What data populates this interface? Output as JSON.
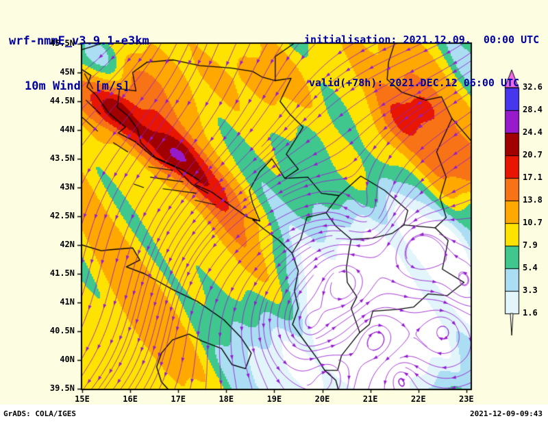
{
  "header": {
    "model": "wrf-nmmE_v3.9.1-e3km",
    "field": "10m Wind  [m/s]",
    "init": "initialisation: 2021.12.09.  00:00 UTC",
    "valid": "valid(+78h): 2021.DEC.12 06:00 UTC"
  },
  "footer": {
    "left": "GrADS: COLA/IGES",
    "right": "2021-12-09-09:43"
  },
  "colors": {
    "background": "#fdfde1",
    "header_text": "#0000a0",
    "tick_text": "#000000",
    "footer_bg": "#ffffff",
    "stream": "#941cd0",
    "map_outline": "#000000"
  },
  "chart_data": {
    "type": "heatmap",
    "title": "10m Wind [m/s]",
    "units": "m/s",
    "overlays": [
      "streamlines",
      "country-borders",
      "coastlines"
    ],
    "x_axis": {
      "range": [
        15,
        23.088
      ],
      "ticks": [
        {
          "v": 15,
          "label": "15E"
        },
        {
          "v": 16,
          "label": "16E"
        },
        {
          "v": 17,
          "label": "17E"
        },
        {
          "v": 18,
          "label": "18E"
        },
        {
          "v": 19,
          "label": "19E"
        },
        {
          "v": 20,
          "label": "20E"
        },
        {
          "v": 21,
          "label": "21E"
        },
        {
          "v": 22,
          "label": "22E"
        },
        {
          "v": 23,
          "label": "23E"
        }
      ]
    },
    "y_axis": {
      "range": [
        39.5,
        45.5
      ],
      "ticks": [
        {
          "v": 45.5,
          "label": "45.5N"
        },
        {
          "v": 45,
          "label": "45N"
        },
        {
          "v": 44.5,
          "label": "44.5N"
        },
        {
          "v": 44,
          "label": "44N"
        },
        {
          "v": 43.5,
          "label": "43.5N"
        },
        {
          "v": 43,
          "label": "43N"
        },
        {
          "v": 42.5,
          "label": "42.5N"
        },
        {
          "v": 42,
          "label": "42N"
        },
        {
          "v": 41.5,
          "label": "41.5N"
        },
        {
          "v": 41,
          "label": "41N"
        },
        {
          "v": 40.5,
          "label": "40.5N"
        },
        {
          "v": 40,
          "label": "40N"
        },
        {
          "v": 39.5,
          "label": "39.5N"
        }
      ]
    },
    "colorbar": {
      "levels": [
        1.6,
        3.3,
        5.4,
        7.9,
        10.7,
        13.8,
        17.1,
        20.7,
        24.4,
        28.4,
        32.6
      ],
      "bin_colors": [
        "#ffffff",
        "#e2f5fb",
        "#abdef2",
        "#3fc78e",
        "#ffe300",
        "#ffa800",
        "#f87316",
        "#e81600",
        "#a00000",
        "#971bca",
        "#4636ee",
        "#ef68e6"
      ]
    },
    "wind_field": {
      "base": 8.8,
      "bumps": [
        {
          "x": 16.35,
          "y": 43.9,
          "sx": 1.5,
          "sy": 0.24,
          "a": 11,
          "rot": -0.57
        },
        {
          "x": 15.65,
          "y": 44.35,
          "sx": 0.25,
          "sy": 0.18,
          "a": 3.5
        },
        {
          "x": 16.9,
          "y": 43.55,
          "sx": 0.3,
          "sy": 0.2,
          "a": 3
        },
        {
          "x": 15.8,
          "y": 44.9,
          "sx": 1.3,
          "sy": 0.9,
          "a": 3.5
        },
        {
          "x": 18.3,
          "y": 45.2,
          "sx": 1.8,
          "sy": 0.7,
          "a": 2.5
        },
        {
          "x": 21.8,
          "y": 44.1,
          "sx": 1.1,
          "sy": 0.8,
          "a": 5.5,
          "rot": 0.3
        },
        {
          "x": 21.9,
          "y": 44.3,
          "sx": 0.4,
          "sy": 0.3,
          "a": 4
        },
        {
          "x": 22.95,
          "y": 43.25,
          "sx": 0.5,
          "sy": 0.45,
          "a": 6
        },
        {
          "x": 20.7,
          "y": 41.2,
          "sx": 1.5,
          "sy": 1.2,
          "a": -7.5
        },
        {
          "x": 19.9,
          "y": 39.9,
          "sx": 1.3,
          "sy": 0.8,
          "a": -6.5
        },
        {
          "x": 22.4,
          "y": 40.3,
          "sx": 1.0,
          "sy": 0.8,
          "a": -5
        },
        {
          "x": 15.45,
          "y": 45.3,
          "sx": 0.55,
          "sy": 0.35,
          "a": -8
        },
        {
          "x": 18.3,
          "y": 45.55,
          "sx": 0.9,
          "sy": 0.3,
          "a": -3
        },
        {
          "x": 16.2,
          "y": 40.4,
          "sx": 1.3,
          "sy": 1.0,
          "a": 2.2
        },
        {
          "x": 18.3,
          "y": 41.9,
          "sx": 1.5,
          "sy": 0.4,
          "a": 4,
          "rot": -0.94
        },
        {
          "x": 23.1,
          "y": 42.3,
          "sx": 0.5,
          "sy": 0.6,
          "a": -4
        },
        {
          "x": 23.2,
          "y": 45.2,
          "sx": 0.5,
          "sy": 0.5,
          "a": -4
        },
        {
          "x": 20.0,
          "y": 43.9,
          "sx": 0.6,
          "sy": 0.5,
          "a": -3.5
        },
        {
          "x": 21.5,
          "y": 42.4,
          "sx": 0.8,
          "sy": 0.7,
          "a": -4
        }
      ],
      "waves": [
        {
          "kx": 2.3,
          "ky": 1.7,
          "p": 1.1,
          "a": 1.6
        },
        {
          "kx": 4.1,
          "ky": 3.3,
          "p": 0.3,
          "a": 1.0
        },
        {
          "kx": 7.7,
          "ky": 5.9,
          "p": 2.0,
          "a": 0.7
        }
      ]
    },
    "flow": {
      "base": {
        "u": -0.85,
        "v": -0.95
      },
      "damp": {
        "x": 21.0,
        "y": 41.2,
        "sx": 2.2,
        "sy": 1.6,
        "a": 0.78
      },
      "vortices": [
        {
          "x": 20.45,
          "y": 41.35,
          "g": 1.5,
          "c": 0.32
        },
        {
          "x": 21.15,
          "y": 40.35,
          "g": -1.3,
          "c": 0.3
        },
        {
          "x": 19.7,
          "y": 40.6,
          "g": 1.1,
          "c": 0.28
        },
        {
          "x": 21.95,
          "y": 41.9,
          "g": 1.3,
          "c": 0.33
        },
        {
          "x": 22.55,
          "y": 40.55,
          "g": -1.1,
          "c": 0.3
        },
        {
          "x": 20.95,
          "y": 42.55,
          "g": -0.9,
          "c": 0.3
        },
        {
          "x": 21.55,
          "y": 39.75,
          "g": 0.9,
          "c": 0.28
        },
        {
          "x": 22.95,
          "y": 41.25,
          "g": 0.8,
          "c": 0.28
        },
        {
          "x": 20.1,
          "y": 39.75,
          "g": -0.7,
          "c": 0.25
        }
      ],
      "waves": [
        {
          "kxu": 0.8,
          "kyu": 1.1,
          "au": 0.35,
          "kxv": 0.9,
          "kyv": -0.7,
          "av": 0.35
        }
      ]
    },
    "geo": {
      "coast": [
        [
          [
            15.0,
            45.05
          ],
          [
            15.18,
            44.95
          ],
          [
            15.1,
            44.75
          ],
          [
            15.3,
            44.6
          ],
          [
            15.55,
            44.3
          ],
          [
            15.9,
            44.05
          ],
          [
            15.75,
            43.95
          ],
          [
            16.1,
            43.8
          ],
          [
            16.45,
            43.55
          ],
          [
            16.8,
            43.42
          ],
          [
            17.1,
            43.3
          ],
          [
            17.45,
            43.12
          ],
          [
            17.35,
            43.05
          ],
          [
            17.7,
            42.92
          ],
          [
            18.1,
            42.68
          ],
          [
            18.45,
            42.48
          ],
          [
            18.7,
            42.42
          ],
          [
            18.55,
            42.44
          ],
          [
            18.78,
            42.28
          ],
          [
            19.1,
            42.08
          ],
          [
            19.37,
            41.86
          ],
          [
            19.5,
            41.55
          ],
          [
            19.42,
            41.2
          ],
          [
            19.5,
            40.9
          ],
          [
            19.38,
            40.62
          ],
          [
            19.55,
            40.42
          ],
          [
            19.9,
            40.02
          ],
          [
            20.05,
            39.82
          ],
          [
            20.28,
            39.65
          ],
          [
            20.33,
            39.5
          ]
        ],
        [
          [
            15.0,
            42.0
          ],
          [
            15.4,
            41.9
          ],
          [
            15.6,
            41.92
          ],
          [
            16.05,
            41.95
          ],
          [
            16.2,
            41.74
          ],
          [
            15.92,
            41.62
          ],
          [
            16.3,
            41.5
          ],
          [
            16.9,
            41.22
          ],
          [
            17.4,
            41.02
          ],
          [
            17.95,
            40.7
          ],
          [
            18.3,
            40.4
          ],
          [
            18.52,
            40.12
          ],
          [
            18.4,
            39.85
          ],
          [
            18.12,
            39.92
          ],
          [
            17.9,
            40.2
          ],
          [
            17.5,
            40.33
          ],
          [
            17.22,
            40.45
          ],
          [
            16.88,
            40.35
          ],
          [
            16.65,
            40.12
          ],
          [
            16.55,
            39.88
          ],
          [
            16.65,
            39.62
          ],
          [
            16.78,
            39.5
          ]
        ]
      ],
      "islands": [
        [
          [
            15.05,
            44.98
          ],
          [
            15.22,
            44.72
          ]
        ],
        [
          [
            15.08,
            44.52
          ],
          [
            15.38,
            44.28
          ]
        ],
        [
          [
            15.0,
            44.22
          ],
          [
            15.32,
            43.98
          ]
        ],
        [
          [
            15.65,
            43.78
          ],
          [
            15.95,
            43.62
          ]
        ],
        [
          [
            16.38,
            43.36
          ],
          [
            16.88,
            43.3
          ]
        ],
        [
          [
            16.42,
            43.18
          ],
          [
            17.1,
            43.1
          ]
        ],
        [
          [
            16.08,
            43.06
          ],
          [
            16.28,
            43.0
          ]
        ],
        [
          [
            16.68,
            42.98
          ],
          [
            17.38,
            42.9
          ]
        ],
        [
          [
            17.35,
            42.78
          ],
          [
            17.78,
            42.7
          ]
        ]
      ],
      "borders": [
        [
          [
            16.35,
            45.18
          ],
          [
            16.05,
            45.0
          ],
          [
            16.12,
            44.68
          ],
          [
            15.78,
            44.72
          ],
          [
            15.73,
            44.4
          ],
          [
            15.95,
            44.25
          ],
          [
            16.15,
            44.02
          ],
          [
            16.22,
            43.78
          ],
          [
            16.55,
            43.5
          ],
          [
            16.95,
            43.35
          ],
          [
            17.28,
            43.06
          ],
          [
            17.62,
            42.9
          ]
        ],
        [
          [
            16.35,
            45.18
          ],
          [
            16.9,
            45.22
          ],
          [
            17.45,
            45.12
          ],
          [
            18.1,
            45.08
          ],
          [
            18.55,
            45.02
          ],
          [
            18.75,
            44.92
          ],
          [
            19.02,
            44.86
          ],
          [
            19.35,
            44.9
          ],
          [
            19.12,
            44.5
          ],
          [
            19.32,
            44.28
          ],
          [
            19.6,
            44.05
          ],
          [
            19.25,
            43.58
          ],
          [
            19.5,
            43.32
          ],
          [
            19.22,
            43.16
          ],
          [
            18.95,
            43.5
          ],
          [
            18.7,
            43.28
          ],
          [
            18.48,
            42.95
          ],
          [
            18.55,
            42.72
          ],
          [
            18.7,
            42.42
          ]
        ],
        [
          [
            19.4,
            45.5
          ],
          [
            19.02,
            45.28
          ],
          [
            19.02,
            44.86
          ]
        ],
        [
          [
            21.5,
            45.5
          ],
          [
            21.38,
            45.18
          ],
          [
            21.35,
            44.88
          ],
          [
            21.65,
            44.66
          ],
          [
            22.15,
            44.52
          ],
          [
            22.48,
            44.58
          ],
          [
            22.7,
            44.2
          ]
        ],
        [
          [
            22.7,
            44.2
          ],
          [
            23.09,
            43.82
          ]
        ],
        [
          [
            22.7,
            44.2
          ],
          [
            22.38,
            43.62
          ],
          [
            22.58,
            43.18
          ],
          [
            22.45,
            42.82
          ],
          [
            22.58,
            42.48
          ],
          [
            22.35,
            42.3
          ]
        ],
        [
          [
            22.35,
            42.3
          ],
          [
            22.62,
            42.08
          ],
          [
            22.5,
            41.58
          ],
          [
            22.95,
            41.35
          ]
        ],
        [
          [
            22.95,
            41.35
          ],
          [
            22.6,
            41.12
          ],
          [
            22.2,
            41.15
          ],
          [
            21.9,
            40.92
          ],
          [
            21.55,
            40.88
          ],
          [
            21.05,
            40.85
          ],
          [
            20.98,
            40.62
          ],
          [
            20.78,
            40.48
          ]
        ],
        [
          [
            20.78,
            40.48
          ],
          [
            20.4,
            40.08
          ],
          [
            20.32,
            39.82
          ],
          [
            20.05,
            39.82
          ]
        ],
        [
          [
            20.78,
            40.48
          ],
          [
            20.6,
            40.9
          ],
          [
            20.72,
            41.1
          ],
          [
            20.52,
            41.35
          ],
          [
            20.5,
            41.6
          ],
          [
            20.56,
            41.92
          ],
          [
            20.6,
            42.1
          ]
        ],
        [
          [
            19.37,
            41.86
          ],
          [
            19.55,
            42.1
          ],
          [
            19.68,
            42.48
          ],
          [
            20.08,
            42.56
          ],
          [
            20.28,
            42.33
          ],
          [
            20.6,
            42.1
          ]
        ],
        [
          [
            19.22,
            43.16
          ],
          [
            19.7,
            43.18
          ],
          [
            19.98,
            42.9
          ],
          [
            20.35,
            42.86
          ],
          [
            20.08,
            42.56
          ]
        ],
        [
          [
            20.35,
            42.86
          ],
          [
            20.8,
            43.2
          ],
          [
            21.3,
            42.95
          ],
          [
            21.78,
            42.6
          ],
          [
            21.7,
            42.35
          ],
          [
            22.35,
            42.3
          ]
        ],
        [
          [
            20.6,
            42.1
          ],
          [
            21.05,
            42.12
          ],
          [
            21.45,
            42.2
          ],
          [
            21.7,
            42.35
          ]
        ],
        [
          [
            15.0,
            45.4
          ],
          [
            15.2,
            45.45
          ],
          [
            15.38,
            45.5
          ]
        ]
      ]
    }
  }
}
